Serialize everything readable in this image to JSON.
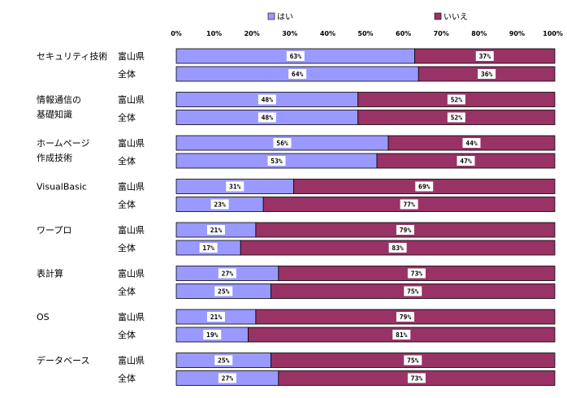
{
  "chart_data": {
    "type": "bar",
    "orientation": "horizontal",
    "stacked": true,
    "xlim": [
      0,
      100
    ],
    "tick_labels": [
      "0%",
      "10%",
      "20%",
      "30%",
      "40%",
      "50%",
      "60%",
      "70%",
      "80%",
      "90%",
      "100%"
    ],
    "legend": {
      "placement": "top",
      "entries": [
        {
          "name": "はい",
          "color": "#9999FF"
        },
        {
          "name": "いいえ",
          "color": "#993366"
        }
      ]
    },
    "groups": [
      {
        "label": [
          "セキュリティ技術"
        ],
        "rows": [
          {
            "name": "富山県",
            "yes": 63,
            "no": 37,
            "yes_label": "63%",
            "no_label": "37%"
          },
          {
            "name": "全体",
            "yes": 64,
            "no": 36,
            "yes_label": "64%",
            "no_label": "36%"
          }
        ]
      },
      {
        "label": [
          "情報通信の",
          "基礎知識"
        ],
        "rows": [
          {
            "name": "富山県",
            "yes": 48,
            "no": 52,
            "yes_label": "48%",
            "no_label": "52%"
          },
          {
            "name": "全体",
            "yes": 48,
            "no": 52,
            "yes_label": "48%",
            "no_label": "52%"
          }
        ]
      },
      {
        "label": [
          "ホームページ",
          "作成技術"
        ],
        "rows": [
          {
            "name": "富山県",
            "yes": 56,
            "no": 44,
            "yes_label": "56%",
            "no_label": "44%"
          },
          {
            "name": "全体",
            "yes": 53,
            "no": 47,
            "yes_label": "53%",
            "no_label": "47%"
          }
        ]
      },
      {
        "label": [
          "VisualBasic"
        ],
        "rows": [
          {
            "name": "富山県",
            "yes": 31,
            "no": 69,
            "yes_label": "31%",
            "no_label": "69%"
          },
          {
            "name": "全体",
            "yes": 23,
            "no": 77,
            "yes_label": "23%",
            "no_label": "77%"
          }
        ]
      },
      {
        "label": [
          "ワープロ"
        ],
        "rows": [
          {
            "name": "富山県",
            "yes": 21,
            "no": 79,
            "yes_label": "21%",
            "no_label": "79%"
          },
          {
            "name": "全体",
            "yes": 17,
            "no": 83,
            "yes_label": "17%",
            "no_label": "83%"
          }
        ]
      },
      {
        "label": [
          "表計算"
        ],
        "rows": [
          {
            "name": "富山県",
            "yes": 27,
            "no": 73,
            "yes_label": "27%",
            "no_label": "73%"
          },
          {
            "name": "全体",
            "yes": 25,
            "no": 75,
            "yes_label": "25%",
            "no_label": "75%"
          }
        ]
      },
      {
        "label": [
          "OS"
        ],
        "rows": [
          {
            "name": "富山県",
            "yes": 21,
            "no": 79,
            "yes_label": "21%",
            "no_label": "79%"
          },
          {
            "name": "全体",
            "yes": 19,
            "no": 81,
            "yes_label": "19%",
            "no_label": "81%"
          }
        ]
      },
      {
        "label": [
          "データベース"
        ],
        "rows": [
          {
            "name": "富山県",
            "yes": 25,
            "no": 75,
            "yes_label": "25%",
            "no_label": "75%"
          },
          {
            "name": "全体",
            "yes": 27,
            "no": 73,
            "yes_label": "27%",
            "no_label": "73%"
          }
        ]
      }
    ]
  }
}
